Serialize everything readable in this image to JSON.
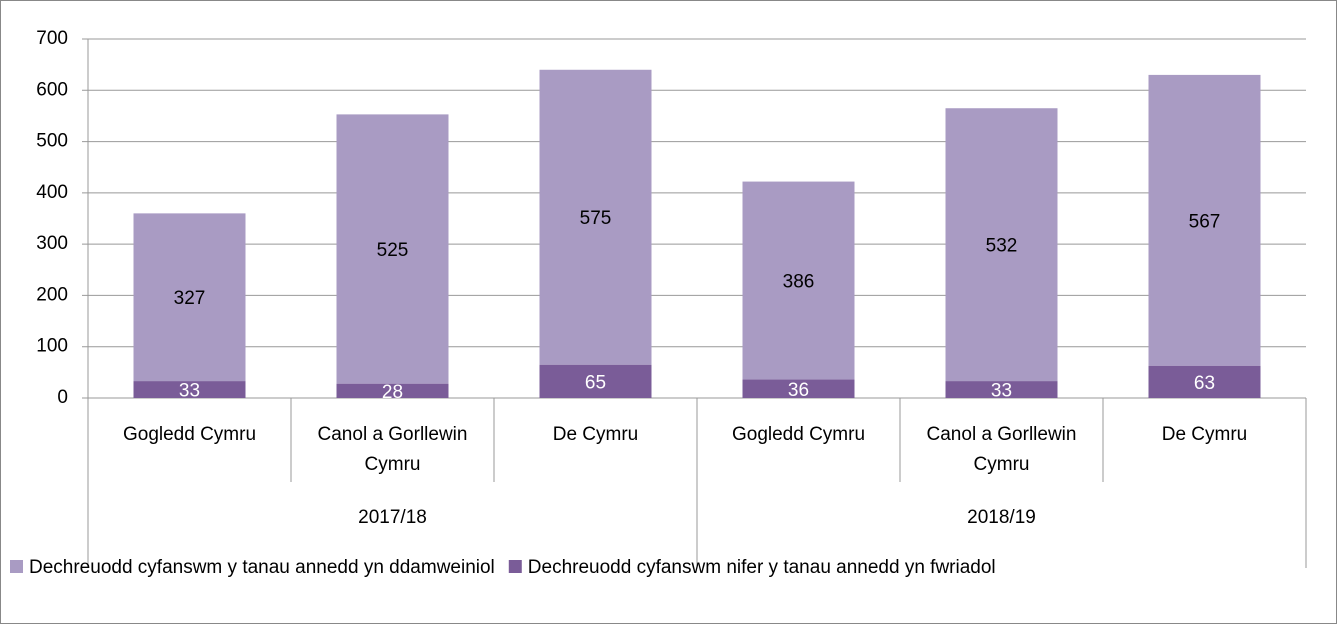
{
  "chart_data": {
    "type": "stacked_bar",
    "categories": [
      "Gogledd Cymru",
      "Canol a Gorllewin Cymru",
      "De Cymru",
      "Gogledd Cymru",
      "Canol a Gorllewin Cymru",
      "De Cymru"
    ],
    "groups": [
      "2017/18",
      "2018/19"
    ],
    "series": [
      {
        "name": "Dechreuodd cyfanswm nifer y tanau annedd yn fwriadol",
        "color": "#7a5c98",
        "values": [
          33,
          28,
          65,
          36,
          33,
          63
        ]
      },
      {
        "name": "Dechreuodd cyfanswm y tanau annedd yn ddamweiniol",
        "color": "#a99bc3",
        "values": [
          327,
          525,
          575,
          386,
          532,
          567
        ]
      }
    ],
    "ylim": [
      0,
      700
    ],
    "yticks": [
      0,
      100,
      200,
      300,
      400,
      500,
      600,
      700
    ],
    "grid": true,
    "legend": "bottom"
  }
}
